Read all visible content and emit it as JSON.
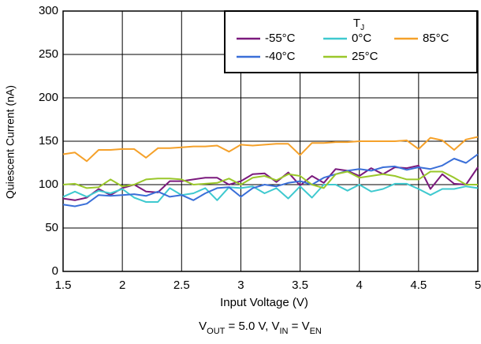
{
  "chart_data": {
    "type": "line",
    "xlabel": "Input Voltage (V)",
    "ylabel": "Quiescent Current (nA)",
    "legend_title": {
      "main": "T",
      "sub": "J"
    },
    "caption_parts": [
      "V",
      "OUT",
      " = 5.0 V, V",
      "IN",
      " = V",
      "EN"
    ],
    "x": [
      1.5,
      1.6,
      1.7,
      1.8,
      1.9,
      2.0,
      2.1,
      2.2,
      2.3,
      2.4,
      2.5,
      2.6,
      2.7,
      2.8,
      2.9,
      3.0,
      3.1,
      3.2,
      3.3,
      3.4,
      3.5,
      3.6,
      3.7,
      3.8,
      3.9,
      4.0,
      4.1,
      4.2,
      4.3,
      4.4,
      4.5,
      4.6,
      4.7,
      4.8,
      4.9,
      5.0
    ],
    "series": [
      {
        "name": "-55°C",
        "color": "#7b1a7d",
        "values": [
          84,
          82,
          85,
          95,
          88,
          96,
          100,
          92,
          91,
          104,
          104,
          106,
          108,
          108,
          100,
          104,
          112,
          113,
          103,
          114,
          99,
          110,
          102,
          118,
          116,
          110,
          119,
          112,
          120,
          119,
          122,
          95,
          112,
          101,
          100,
          120
        ]
      },
      {
        "name": "0°C",
        "color": "#3fc9cf",
        "values": [
          86,
          92,
          86,
          93,
          90,
          95,
          85,
          80,
          80,
          96,
          88,
          90,
          96,
          82,
          97,
          96,
          98,
          90,
          96,
          84,
          98,
          85,
          100,
          100,
          93,
          100,
          92,
          95,
          101,
          101,
          95,
          88,
          95,
          95,
          98,
          96
        ]
      },
      {
        "name": "85°C",
        "color": "#f5a12a",
        "values": [
          135,
          137,
          127,
          140,
          140,
          141,
          141,
          131,
          142,
          142,
          143,
          144,
          144,
          145,
          138,
          146,
          145,
          146,
          147,
          147,
          134,
          148,
          148,
          149,
          149,
          150,
          150,
          150,
          150,
          151,
          141,
          154,
          151,
          140,
          152,
          155
        ]
      },
      {
        "name": "-40°C",
        "color": "#3a6fd8",
        "values": [
          77,
          75,
          78,
          88,
          87,
          88,
          89,
          87,
          92,
          86,
          88,
          82,
          90,
          96,
          97,
          86,
          96,
          100,
          98,
          102,
          104,
          100,
          108,
          112,
          116,
          118,
          116,
          120,
          121,
          117,
          120,
          118,
          122,
          130,
          125,
          135
        ]
      },
      {
        "name": "25°C",
        "color": "#9ac72a",
        "values": [
          100,
          101,
          96,
          97,
          106,
          98,
          100,
          106,
          107,
          107,
          106,
          100,
          101,
          102,
          107,
          100,
          108,
          110,
          105,
          112,
          110,
          100,
          96,
          112,
          115,
          108,
          110,
          112,
          110,
          106,
          106,
          115,
          115,
          108,
          100,
          100
        ]
      }
    ],
    "xlim": [
      1.5,
      5
    ],
    "xticks": [
      1.5,
      2,
      2.5,
      3,
      3.5,
      4,
      4.5,
      5
    ],
    "ylim": [
      0,
      300
    ],
    "yticks": [
      0,
      50,
      100,
      150,
      200,
      250,
      300
    ],
    "grid": true
  }
}
